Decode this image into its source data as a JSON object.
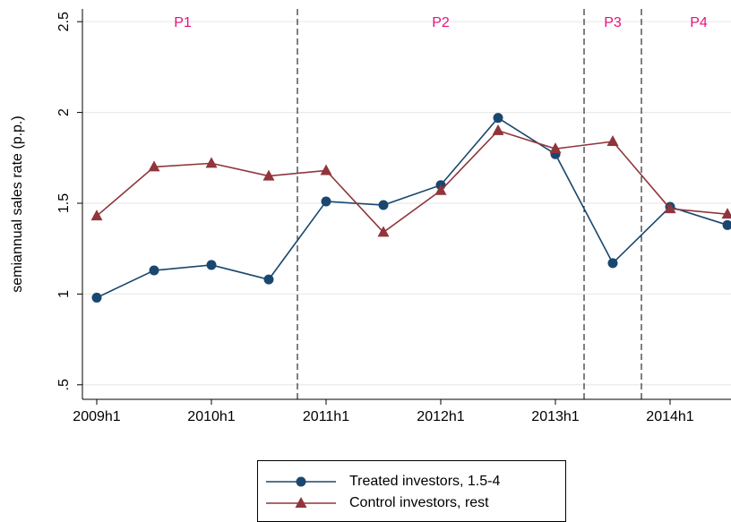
{
  "chart_data": {
    "type": "line",
    "y_label": "semiannual sales rate (p.p.)",
    "categories": [
      "2009h1",
      null,
      "2010h1",
      null,
      "2011h1",
      null,
      "2012h1",
      null,
      "2013h1",
      null,
      "2014h1",
      null
    ],
    "series": [
      {
        "name": "Treated investors, 1.5-4",
        "color": "#1a476f",
        "marker": "circle",
        "values": [
          0.98,
          1.13,
          1.16,
          1.08,
          1.51,
          1.49,
          1.6,
          1.97,
          1.77,
          1.17,
          1.48,
          1.38
        ]
      },
      {
        "name": "Control investors, rest",
        "color": "#90353b",
        "marker": "triangle",
        "values": [
          1.43,
          1.7,
          1.72,
          1.65,
          1.68,
          1.34,
          1.57,
          1.9,
          1.8,
          1.84,
          1.47,
          1.44
        ]
      }
    ],
    "ylim": [
      0.42,
      2.57
    ],
    "yticks": [
      {
        "value": 0.5,
        "label": ".5"
      },
      1,
      1.5,
      2,
      2.5
    ],
    "grid": true,
    "vlines": [
      3.5,
      8.5,
      9.5
    ],
    "annotations": [
      "P1",
      "P2",
      "P3",
      "P4"
    ],
    "annotation_color": "#e8127d",
    "legend": "bottom"
  }
}
